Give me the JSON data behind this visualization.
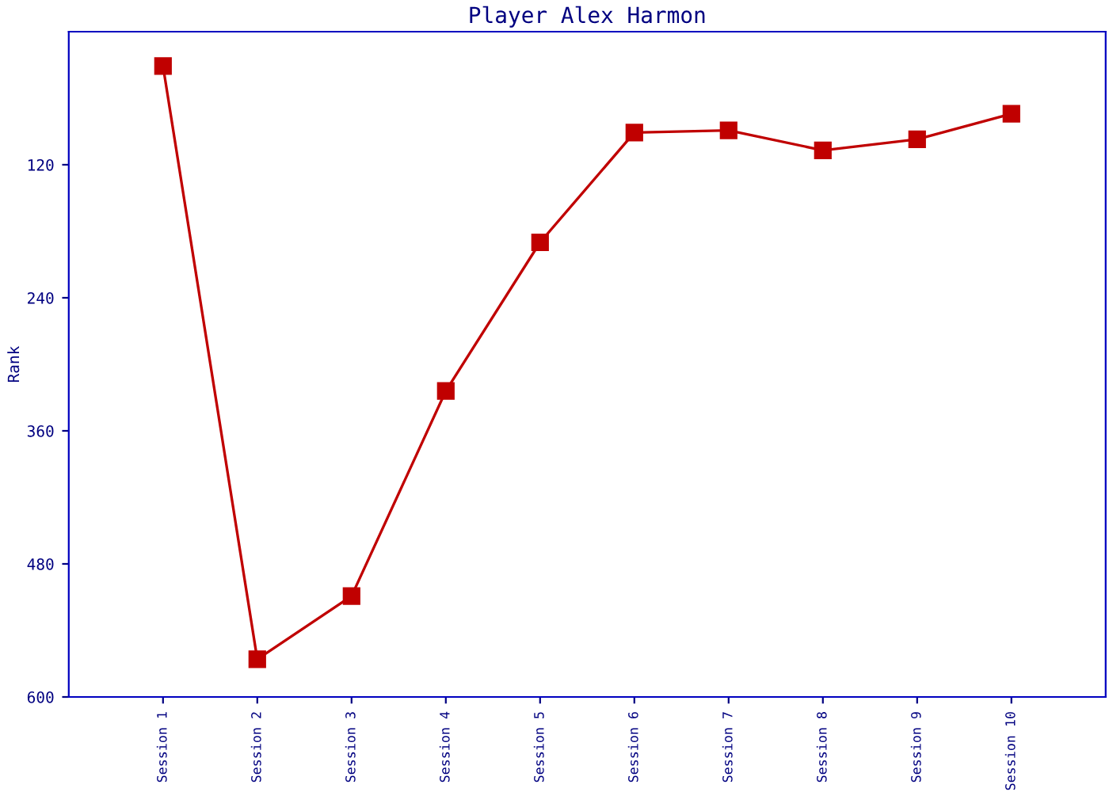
{
  "chart_data": {
    "type": "line",
    "title": "Player Alex Harmon",
    "ylabel": "Rank",
    "categories": [
      "Session 1",
      "Session 2",
      "Session 3",
      "Session 4",
      "Session 5",
      "Session 6",
      "Session 7",
      "Session 8",
      "Session 9",
      "Session 10"
    ],
    "series": [
      {
        "color": "#c00000",
        "values": [
          31,
          566,
          509,
          324,
          190,
          91,
          89,
          107,
          97,
          74
        ]
      }
    ],
    "ylim": [
      600,
      0
    ],
    "yticks": [
      120,
      240,
      360,
      480,
      600
    ],
    "grid": false,
    "legend": false,
    "marker": "square",
    "line_style": "solid"
  }
}
